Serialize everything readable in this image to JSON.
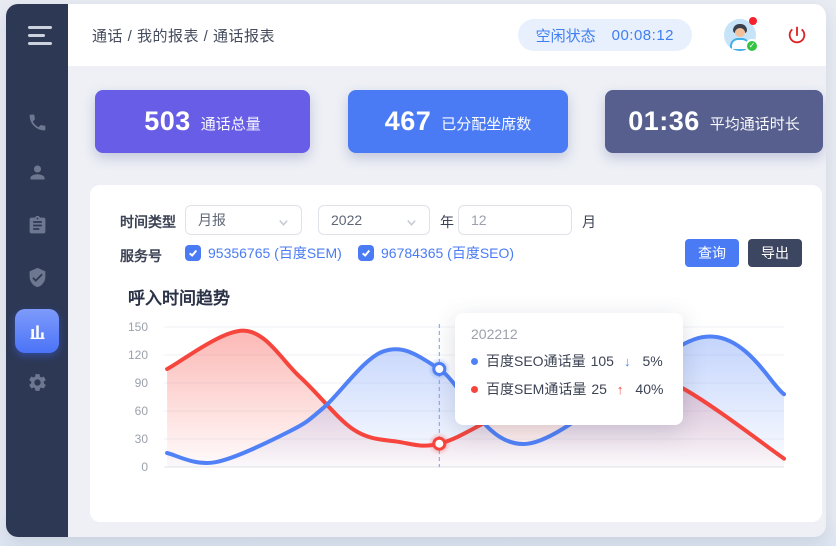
{
  "topbar": {
    "breadcrumb": "通话 / 我的报表 / 通话报表",
    "status_label": "空闲状态",
    "status_time": "00:08:12"
  },
  "sidebar": {
    "active_item": "reports",
    "items": [
      "phone",
      "contacts",
      "tasks",
      "security",
      "reports",
      "settings"
    ]
  },
  "stats": [
    {
      "value": "503",
      "label": "通话总量",
      "color": "#675de6"
    },
    {
      "value": "467",
      "label": "已分配坐席数",
      "color": "#4a7bf5"
    },
    {
      "value": "01:36",
      "label": "平均通话时长",
      "color": "#575f8e"
    }
  ],
  "filters": {
    "time_type_label": "时间类型",
    "time_type_value": "月报",
    "year_value": "2022",
    "year_suffix": "年",
    "month_value": "12",
    "month_suffix": "月",
    "service_label": "服务号",
    "services": [
      {
        "label": "95356765 (百度SEM)",
        "checked": true
      },
      {
        "label": "96784365 (百度SEO)",
        "checked": true
      }
    ],
    "query_button": "查询",
    "export_button": "导出"
  },
  "chart_data": {
    "type": "area",
    "title": "呼入时间趋势",
    "xlabel": "",
    "ylabel": "",
    "ylim": [
      0,
      150
    ],
    "yticks": [
      0,
      30,
      60,
      90,
      120,
      150
    ],
    "grid": true,
    "x_axis_labels_visible": false,
    "series": [
      {
        "name": "百度SEM通话量",
        "color": "#f5453d",
        "points": [
          [
            0.005,
            105
          ],
          [
            0.13,
            146
          ],
          [
            0.22,
            96
          ],
          [
            0.306,
            40
          ],
          [
            0.378,
            27
          ],
          [
            0.444,
            25
          ],
          [
            0.538,
            55
          ],
          [
            0.7,
            115
          ],
          [
            0.832,
            86
          ],
          [
            1.0,
            9
          ]
        ]
      },
      {
        "name": "百度SEO通话量",
        "color": "#5081f6",
        "points": [
          [
            0.005,
            15
          ],
          [
            0.082,
            5
          ],
          [
            0.202,
            38
          ],
          [
            0.258,
            64
          ],
          [
            0.354,
            124
          ],
          [
            0.444,
            105
          ],
          [
            0.587,
            25
          ],
          [
            0.867,
            139
          ],
          [
            1.0,
            78
          ]
        ]
      }
    ],
    "hover": {
      "x_frac": 0.444,
      "label": "202212",
      "rows": [
        {
          "series": "百度SEO通话量",
          "value": 105,
          "trend": "down",
          "pct": "5%",
          "color": "#5081f6"
        },
        {
          "series": "百度SEM通话量",
          "value": 25,
          "trend": "up",
          "pct": "40%",
          "color": "#f5453d"
        }
      ]
    }
  }
}
